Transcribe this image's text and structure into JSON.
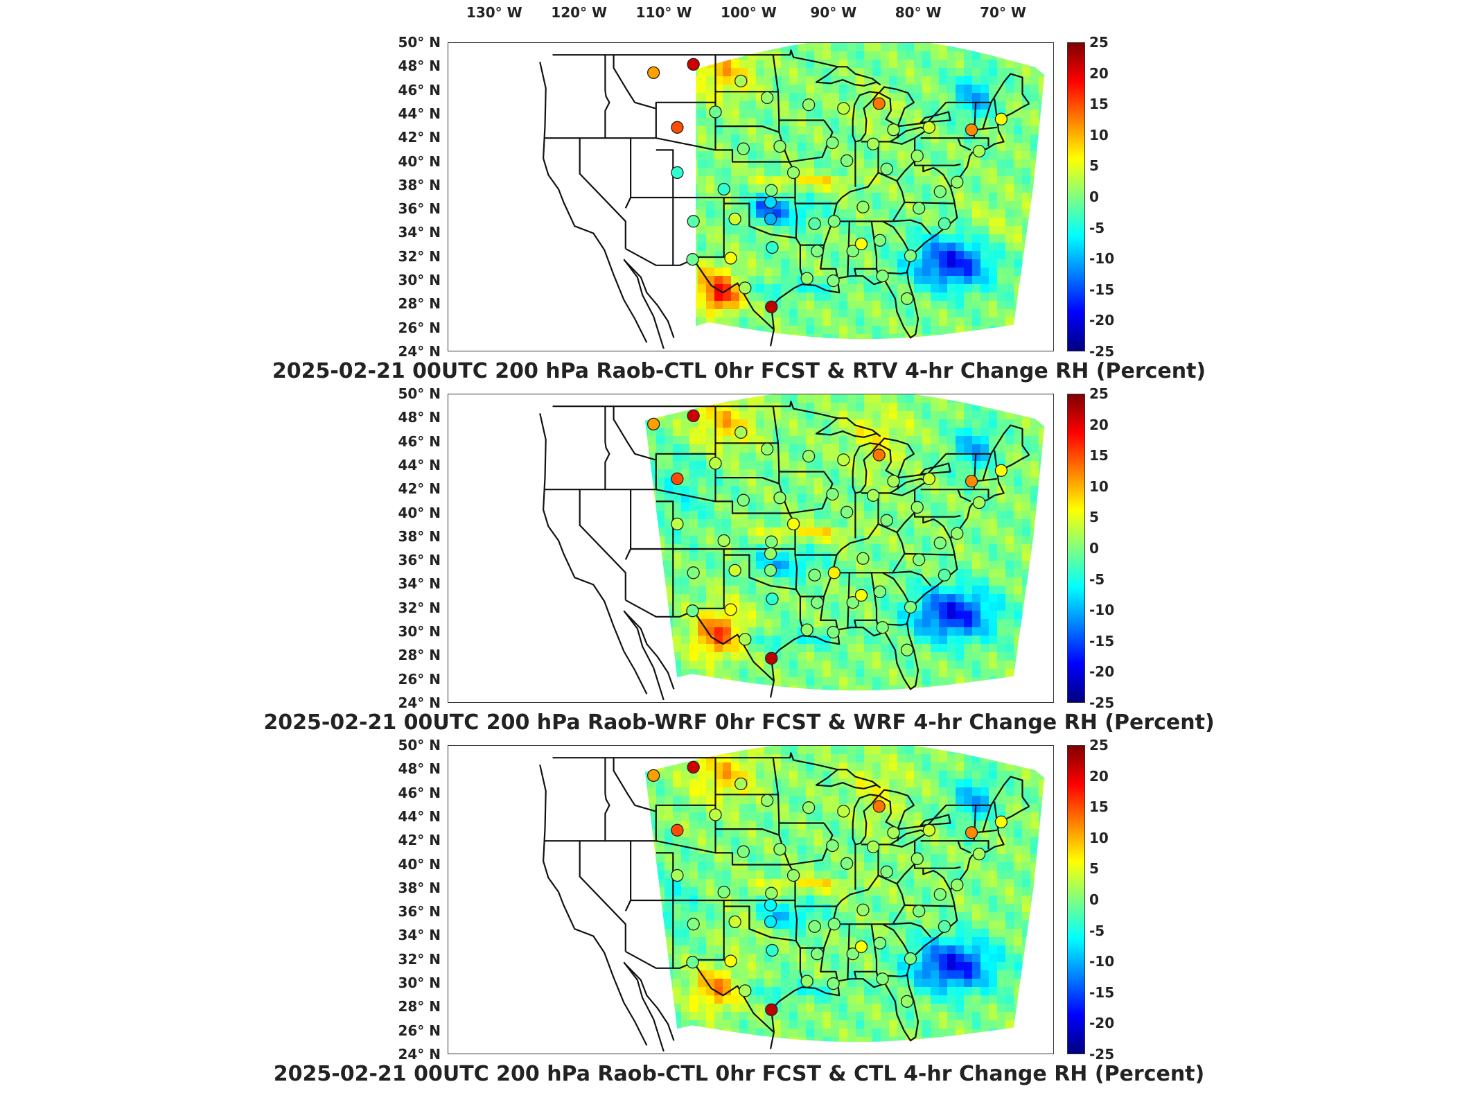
{
  "longitude_labels": [
    "130° W",
    "120° W",
    "110° W",
    "100° W",
    "90° W",
    "80° W",
    "70° W"
  ],
  "latitude_labels": [
    "50° N",
    "48° N",
    "46° N",
    "44° N",
    "42° N",
    "40° N",
    "38° N",
    "36° N",
    "34° N",
    "32° N",
    "30° N",
    "28° N",
    "26° N",
    "24° N"
  ],
  "colorbar": {
    "ticks": [
      "25",
      "20",
      "15",
      "10",
      "5",
      "0",
      "-5",
      "-10",
      "-15",
      "-20",
      "-25"
    ],
    "range": [
      -25,
      25
    ],
    "colormap": "jet",
    "colors": [
      "#7f0000",
      "#ff0000",
      "#ff8000",
      "#ffff00",
      "#80ff80",
      "#00ffff",
      "#0080ff",
      "#0000ff",
      "#00007f"
    ]
  },
  "panels": [
    {
      "title": "2025-02-21 00UTC 200 hPa Raob-CTL 0hr FCST & RTV 4-hr Change RH (Percent)",
      "field": "rtv",
      "stations": [
        {
          "lon": -111.3,
          "lat": 47.5,
          "value": 11
        },
        {
          "lon": -106.6,
          "lat": 48.2,
          "value": 21
        },
        {
          "lon": -101.0,
          "lat": 46.8,
          "value": 2
        },
        {
          "lon": -97.9,
          "lat": 45.4,
          "value": 1
        },
        {
          "lon": -104.0,
          "lat": 44.2,
          "value": -1
        },
        {
          "lon": -108.5,
          "lat": 42.9,
          "value": 15
        },
        {
          "lon": -100.7,
          "lat": 41.1,
          "value": 0
        },
        {
          "lon": -96.4,
          "lat": 41.3,
          "value": 1
        },
        {
          "lon": -108.5,
          "lat": 39.1,
          "value": -4
        },
        {
          "lon": -103.0,
          "lat": 37.7,
          "value": -4
        },
        {
          "lon": -97.4,
          "lat": 37.6,
          "value": 0
        },
        {
          "lon": -94.8,
          "lat": 39.1,
          "value": 1
        },
        {
          "lon": -93.0,
          "lat": 44.8,
          "value": 1
        },
        {
          "lon": -88.9,
          "lat": 44.5,
          "value": 3
        },
        {
          "lon": -84.7,
          "lat": 44.9,
          "value": 13
        },
        {
          "lon": -90.2,
          "lat": 41.6,
          "value": 0
        },
        {
          "lon": -88.5,
          "lat": 40.1,
          "value": 0
        },
        {
          "lon": -85.4,
          "lat": 41.5,
          "value": 2
        },
        {
          "lon": -83.0,
          "lat": 42.7,
          "value": 2
        },
        {
          "lon": -78.8,
          "lat": 42.9,
          "value": 4
        },
        {
          "lon": -73.8,
          "lat": 42.7,
          "value": 12
        },
        {
          "lon": -70.3,
          "lat": 43.6,
          "value": 6
        },
        {
          "lon": -80.2,
          "lat": 40.5,
          "value": 1
        },
        {
          "lon": -83.8,
          "lat": 39.4,
          "value": 0
        },
        {
          "lon": -77.5,
          "lat": 37.5,
          "value": 0
        },
        {
          "lon": -75.5,
          "lat": 38.3,
          "value": 1
        },
        {
          "lon": -72.9,
          "lat": 40.9,
          "value": 2
        },
        {
          "lon": -86.6,
          "lat": 36.2,
          "value": 1
        },
        {
          "lon": -90.0,
          "lat": 35.0,
          "value": 0
        },
        {
          "lon": -92.3,
          "lat": 34.8,
          "value": -2
        },
        {
          "lon": -97.5,
          "lat": 35.2,
          "value": -10
        },
        {
          "lon": -97.5,
          "lat": 36.6,
          "value": -8
        },
        {
          "lon": -101.7,
          "lat": 35.2,
          "value": 4
        },
        {
          "lon": -106.6,
          "lat": 35.0,
          "value": -2
        },
        {
          "lon": -106.7,
          "lat": 31.8,
          "value": -1
        },
        {
          "lon": -102.2,
          "lat": 31.9,
          "value": 6
        },
        {
          "lon": -97.3,
          "lat": 32.8,
          "value": -4
        },
        {
          "lon": -92.0,
          "lat": 32.5,
          "value": 0
        },
        {
          "lon": -87.8,
          "lat": 32.5,
          "value": 0
        },
        {
          "lon": -86.8,
          "lat": 33.1,
          "value": 6
        },
        {
          "lon": -84.6,
          "lat": 33.4,
          "value": 0
        },
        {
          "lon": -81.0,
          "lat": 32.1,
          "value": 0
        },
        {
          "lon": -77.0,
          "lat": 34.8,
          "value": -2
        },
        {
          "lon": -80.0,
          "lat": 36.1,
          "value": 0
        },
        {
          "lon": -84.3,
          "lat": 30.4,
          "value": 0
        },
        {
          "lon": -90.1,
          "lat": 30.0,
          "value": 0
        },
        {
          "lon": -93.2,
          "lat": 30.2,
          "value": 1
        },
        {
          "lon": -97.4,
          "lat": 27.8,
          "value": 22
        },
        {
          "lon": -100.5,
          "lat": 29.4,
          "value": 2
        },
        {
          "lon": -81.4,
          "lat": 28.5,
          "value": 1
        }
      ]
    },
    {
      "title": "2025-02-21 00UTC 200 hPa Raob-WRF 0hr FCST & WRF 4-hr Change RH (Percent)",
      "field": "wrf",
      "stations": [
        {
          "lon": -111.3,
          "lat": 47.5,
          "value": 11
        },
        {
          "lon": -106.6,
          "lat": 48.2,
          "value": 21
        },
        {
          "lon": -101.0,
          "lat": 46.8,
          "value": 2
        },
        {
          "lon": -97.9,
          "lat": 45.4,
          "value": 1
        },
        {
          "lon": -104.0,
          "lat": 44.2,
          "value": 3
        },
        {
          "lon": -108.5,
          "lat": 42.9,
          "value": 15
        },
        {
          "lon": -100.7,
          "lat": 41.1,
          "value": 0
        },
        {
          "lon": -96.4,
          "lat": 41.3,
          "value": 1
        },
        {
          "lon": -108.5,
          "lat": 39.1,
          "value": 3
        },
        {
          "lon": -103.0,
          "lat": 37.7,
          "value": 2
        },
        {
          "lon": -97.4,
          "lat": 37.6,
          "value": 0
        },
        {
          "lon": -94.8,
          "lat": 39.1,
          "value": 6
        },
        {
          "lon": -93.0,
          "lat": 44.8,
          "value": 1
        },
        {
          "lon": -88.9,
          "lat": 44.5,
          "value": 3
        },
        {
          "lon": -84.7,
          "lat": 44.9,
          "value": 13
        },
        {
          "lon": -90.2,
          "lat": 41.6,
          "value": 0
        },
        {
          "lon": -88.5,
          "lat": 40.1,
          "value": 0
        },
        {
          "lon": -85.4,
          "lat": 41.5,
          "value": 2
        },
        {
          "lon": -83.0,
          "lat": 42.7,
          "value": 2
        },
        {
          "lon": -78.8,
          "lat": 42.9,
          "value": 4
        },
        {
          "lon": -73.8,
          "lat": 42.7,
          "value": 12
        },
        {
          "lon": -70.3,
          "lat": 43.6,
          "value": 6
        },
        {
          "lon": -80.2,
          "lat": 40.5,
          "value": 1
        },
        {
          "lon": -83.8,
          "lat": 39.4,
          "value": 0
        },
        {
          "lon": -77.5,
          "lat": 37.5,
          "value": 0
        },
        {
          "lon": -75.5,
          "lat": 38.3,
          "value": 1
        },
        {
          "lon": -72.9,
          "lat": 40.9,
          "value": 2
        },
        {
          "lon": -86.6,
          "lat": 36.2,
          "value": 1
        },
        {
          "lon": -90.0,
          "lat": 35.0,
          "value": 7
        },
        {
          "lon": -92.3,
          "lat": 34.8,
          "value": 0
        },
        {
          "lon": -97.5,
          "lat": 35.2,
          "value": 0
        },
        {
          "lon": -97.5,
          "lat": 36.6,
          "value": 1
        },
        {
          "lon": -101.7,
          "lat": 35.2,
          "value": 4
        },
        {
          "lon": -106.6,
          "lat": 35.0,
          "value": 0
        },
        {
          "lon": -106.7,
          "lat": 31.8,
          "value": -1
        },
        {
          "lon": -102.2,
          "lat": 31.9,
          "value": 6
        },
        {
          "lon": -97.3,
          "lat": 32.8,
          "value": -4
        },
        {
          "lon": -92.0,
          "lat": 32.5,
          "value": 0
        },
        {
          "lon": -87.8,
          "lat": 32.5,
          "value": 0
        },
        {
          "lon": -86.8,
          "lat": 33.1,
          "value": 6
        },
        {
          "lon": -84.6,
          "lat": 33.4,
          "value": 0
        },
        {
          "lon": -81.0,
          "lat": 32.1,
          "value": 0
        },
        {
          "lon": -77.0,
          "lat": 34.8,
          "value": -2
        },
        {
          "lon": -80.0,
          "lat": 36.1,
          "value": 0
        },
        {
          "lon": -84.3,
          "lat": 30.4,
          "value": 0
        },
        {
          "lon": -90.1,
          "lat": 30.0,
          "value": 0
        },
        {
          "lon": -93.2,
          "lat": 30.2,
          "value": 1
        },
        {
          "lon": -97.4,
          "lat": 27.8,
          "value": 22
        },
        {
          "lon": -100.5,
          "lat": 29.4,
          "value": 2
        },
        {
          "lon": -81.4,
          "lat": 28.5,
          "value": 1
        }
      ]
    },
    {
      "title": "2025-02-21 00UTC 200 hPa Raob-CTL 0hr FCST & CTL 4-hr Change RH (Percent)",
      "field": "ctl",
      "stations": [
        {
          "lon": -111.3,
          "lat": 47.5,
          "value": 11
        },
        {
          "lon": -106.6,
          "lat": 48.2,
          "value": 21
        },
        {
          "lon": -101.0,
          "lat": 46.8,
          "value": 2
        },
        {
          "lon": -97.9,
          "lat": 45.4,
          "value": 1
        },
        {
          "lon": -104.0,
          "lat": 44.2,
          "value": 3
        },
        {
          "lon": -108.5,
          "lat": 42.9,
          "value": 15
        },
        {
          "lon": -100.7,
          "lat": 41.1,
          "value": 0
        },
        {
          "lon": -96.4,
          "lat": 41.3,
          "value": 1
        },
        {
          "lon": -108.5,
          "lat": 39.1,
          "value": 2
        },
        {
          "lon": -103.0,
          "lat": 37.7,
          "value": 0
        },
        {
          "lon": -97.4,
          "lat": 37.6,
          "value": 1
        },
        {
          "lon": -94.8,
          "lat": 39.1,
          "value": 1
        },
        {
          "lon": -93.0,
          "lat": 44.8,
          "value": 1
        },
        {
          "lon": -88.9,
          "lat": 44.5,
          "value": 3
        },
        {
          "lon": -84.7,
          "lat": 44.9,
          "value": 13
        },
        {
          "lon": -90.2,
          "lat": 41.6,
          "value": 0
        },
        {
          "lon": -88.5,
          "lat": 40.1,
          "value": 0
        },
        {
          "lon": -85.4,
          "lat": 41.5,
          "value": 2
        },
        {
          "lon": -83.0,
          "lat": 42.7,
          "value": 2
        },
        {
          "lon": -78.8,
          "lat": 42.9,
          "value": 4
        },
        {
          "lon": -73.8,
          "lat": 42.7,
          "value": 12
        },
        {
          "lon": -70.3,
          "lat": 43.6,
          "value": 6
        },
        {
          "lon": -80.2,
          "lat": 40.5,
          "value": 1
        },
        {
          "lon": -83.8,
          "lat": 39.4,
          "value": 0
        },
        {
          "lon": -77.5,
          "lat": 37.5,
          "value": 0
        },
        {
          "lon": -75.5,
          "lat": 38.3,
          "value": 1
        },
        {
          "lon": -72.9,
          "lat": 40.9,
          "value": 2
        },
        {
          "lon": -86.6,
          "lat": 36.2,
          "value": 1
        },
        {
          "lon": -90.0,
          "lat": 35.0,
          "value": 0
        },
        {
          "lon": -92.3,
          "lat": 34.8,
          "value": 0
        },
        {
          "lon": -97.5,
          "lat": 35.2,
          "value": -7
        },
        {
          "lon": -97.5,
          "lat": 36.6,
          "value": -6
        },
        {
          "lon": -101.7,
          "lat": 35.2,
          "value": 4
        },
        {
          "lon": -106.6,
          "lat": 35.0,
          "value": 0
        },
        {
          "lon": -106.7,
          "lat": 31.8,
          "value": -1
        },
        {
          "lon": -102.2,
          "lat": 31.9,
          "value": 6
        },
        {
          "lon": -97.3,
          "lat": 32.8,
          "value": -4
        },
        {
          "lon": -92.0,
          "lat": 32.5,
          "value": 0
        },
        {
          "lon": -87.8,
          "lat": 32.5,
          "value": 0
        },
        {
          "lon": -86.8,
          "lat": 33.1,
          "value": 6
        },
        {
          "lon": -84.6,
          "lat": 33.4,
          "value": 0
        },
        {
          "lon": -81.0,
          "lat": 32.1,
          "value": 0
        },
        {
          "lon": -77.0,
          "lat": 34.8,
          "value": -2
        },
        {
          "lon": -80.0,
          "lat": 36.1,
          "value": 0
        },
        {
          "lon": -84.3,
          "lat": 30.4,
          "value": 0
        },
        {
          "lon": -90.1,
          "lat": 30.0,
          "value": 0
        },
        {
          "lon": -93.2,
          "lat": 30.2,
          "value": 1
        },
        {
          "lon": -97.4,
          "lat": 27.8,
          "value": 22
        },
        {
          "lon": -100.5,
          "lat": 29.4,
          "value": 2
        },
        {
          "lon": -81.4,
          "lat": 28.5,
          "value": 1
        }
      ]
    }
  ]
}
